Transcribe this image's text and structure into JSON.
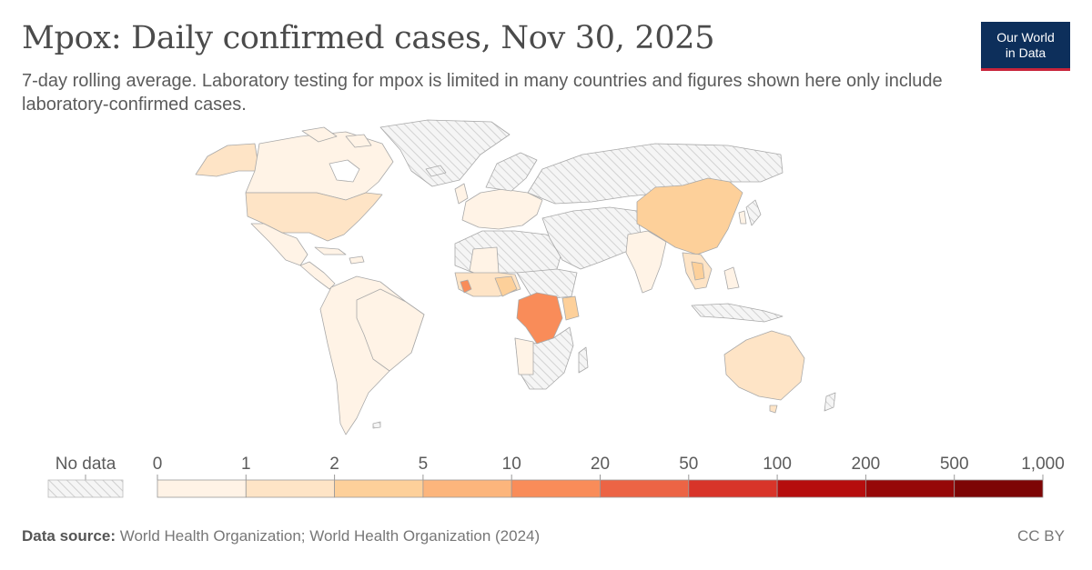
{
  "header": {
    "title": "Mpox: Daily confirmed cases, Nov 30, 2025",
    "subtitle": "7-day rolling average. Laboratory testing for mpox is limited in many countries and figures shown here only include laboratory-confirmed cases."
  },
  "logo": {
    "line1": "Our World",
    "line2": "in Data",
    "bg": "#0d2f5b",
    "accent": "#c8243a"
  },
  "legend": {
    "no_data_label": "No data",
    "thresholds": [
      "0",
      "1",
      "2",
      "5",
      "10",
      "20",
      "50",
      "100",
      "200",
      "500",
      "1,000"
    ],
    "colors": [
      "#fff3e6",
      "#fee4c6",
      "#fdd09a",
      "#fcb57c",
      "#f98c59",
      "#ec6445",
      "#d83429",
      "#b50d0d",
      "#960808",
      "#7d0505"
    ]
  },
  "map": {
    "colors": {
      "no_data_fill": "#f2f2f2",
      "hatch": "#d2d2d2",
      "border": "#a9a9a9",
      "ocean": "#ffffff"
    },
    "highlighted_regions": [
      {
        "name": "Democratic Republic of Congo",
        "bin": 4
      },
      {
        "name": "Sierra Leone",
        "bin": 4
      },
      {
        "name": "China",
        "bin": 2
      },
      {
        "name": "Kenya",
        "bin": 2
      },
      {
        "name": "United States",
        "bin": 1
      },
      {
        "name": "Australia",
        "bin": 1
      },
      {
        "name": "Thailand",
        "bin": 2
      }
    ]
  },
  "footer": {
    "source_label": "Data source:",
    "source_text": "World Health Organization; World Health Organization (2024)",
    "license": "CC BY"
  }
}
